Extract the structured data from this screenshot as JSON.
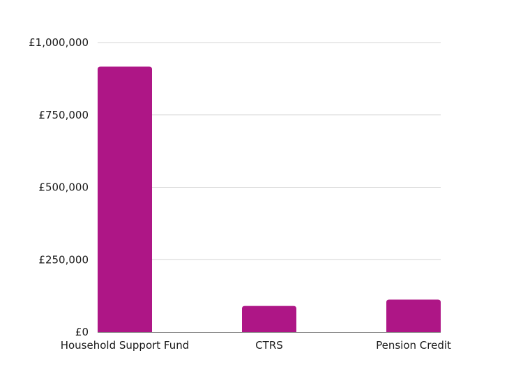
{
  "chart_data": {
    "type": "bar",
    "title": "",
    "xlabel": "",
    "ylabel": "",
    "categories": [
      "Household Support Fund",
      "CTRS",
      "Pension Credit"
    ],
    "values": [
      917000,
      90000,
      112000
    ],
    "ylim": [
      0,
      1000000
    ],
    "yticks": [
      0,
      250000,
      500000,
      750000,
      1000000
    ],
    "ytick_labels": [
      "£0",
      "£250,000",
      "£500,000",
      "£750,000",
      "£1,000,000"
    ],
    "grid": true,
    "legend": "none",
    "bar_color": "#ae1686"
  }
}
